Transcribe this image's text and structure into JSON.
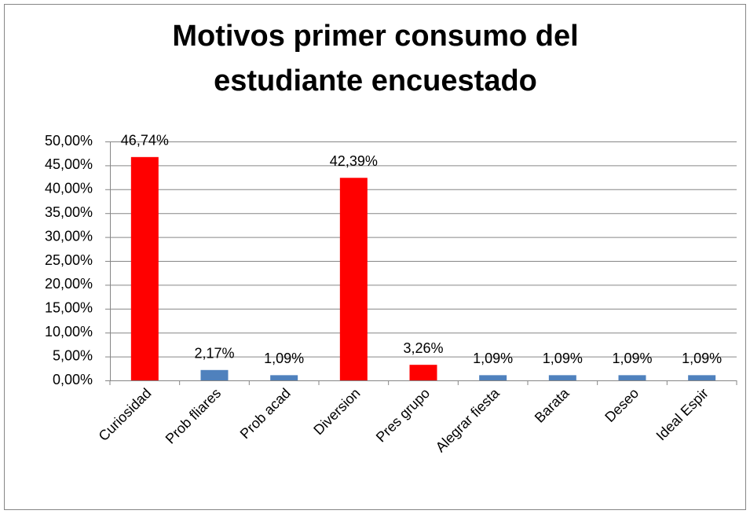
{
  "chart_data": {
    "type": "bar",
    "title": [
      "Motivos primer consumo del",
      "estudiante encuestado"
    ],
    "categories": [
      "Curiosidad",
      "Prob fliares",
      "Prob acad",
      "Diversion",
      "Pres grupo",
      "Alegrar fiesta",
      "Barata",
      "Deseo",
      "Ideal Espir"
    ],
    "values": [
      46.74,
      2.17,
      1.09,
      42.39,
      3.26,
      1.09,
      1.09,
      1.09,
      1.09
    ],
    "value_labels": [
      "46,74%",
      "2,17%",
      "1,09%",
      "42,39%",
      "3,26%",
      "1,09%",
      "1,09%",
      "1,09%",
      "1,09%"
    ],
    "colors": [
      "#ff0000",
      "#4f81bd",
      "#4f81bd",
      "#ff0000",
      "#ff0000",
      "#4f81bd",
      "#4f81bd",
      "#4f81bd",
      "#4f81bd"
    ],
    "ylim": [
      0,
      50
    ],
    "yticks": [
      {
        "value": 0,
        "label": "0,00%"
      },
      {
        "value": 5,
        "label": "5,00%"
      },
      {
        "value": 10,
        "label": "10,00%"
      },
      {
        "value": 15,
        "label": "15,00%"
      },
      {
        "value": 20,
        "label": "20,00%"
      },
      {
        "value": 25,
        "label": "25,00%"
      },
      {
        "value": 30,
        "label": "30,00%"
      },
      {
        "value": 35,
        "label": "35,00%"
      },
      {
        "value": 40,
        "label": "40,00%"
      },
      {
        "value": 45,
        "label": "45,00%"
      },
      {
        "value": 50,
        "label": "50,00%"
      }
    ],
    "grid": true
  }
}
